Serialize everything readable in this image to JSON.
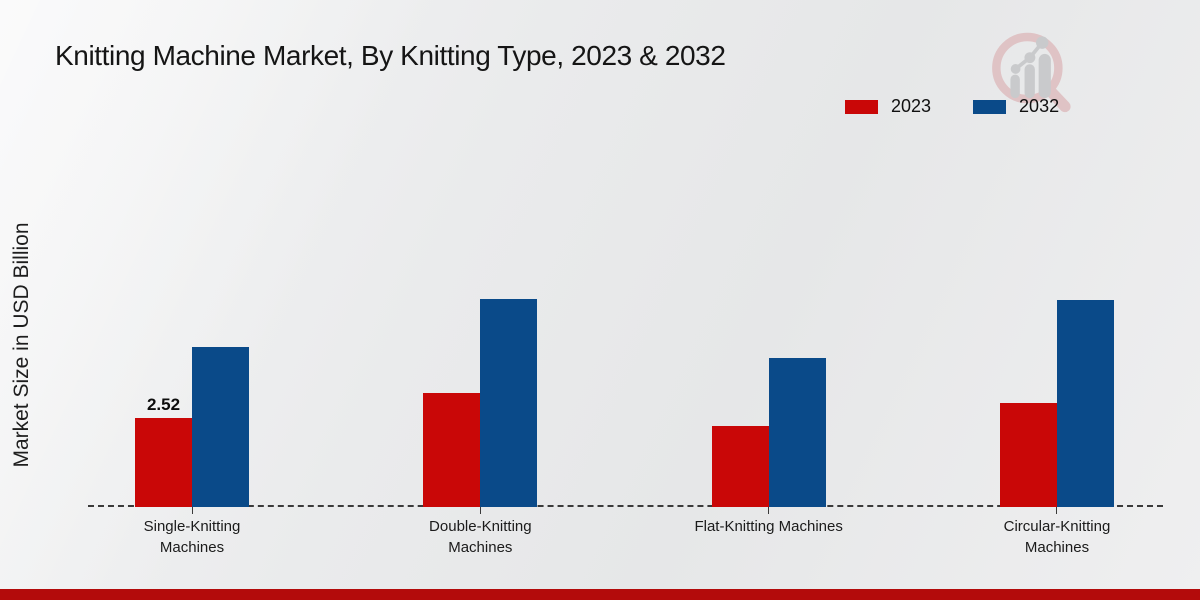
{
  "page": {
    "title": "Knitting Machine Market, By Knitting Type, 2023 & 2032"
  },
  "chart_data": {
    "type": "bar",
    "title": "Knitting Machine Market, By Knitting Type, 2023 & 2032",
    "categories": [
      "Single-Knitting Machines",
      "Double-Knitting Machines",
      "Flat-Knitting Machines",
      "Circular-Knitting Machines"
    ],
    "series": [
      {
        "name": "2023",
        "color": "#c90707",
        "values": [
          2.52,
          3.24,
          2.3,
          2.96
        ]
      },
      {
        "name": "2032",
        "color": "#0a4a89",
        "values": [
          4.55,
          5.91,
          4.24,
          5.89
        ]
      }
    ],
    "annotations": [
      {
        "series_index": 0,
        "category_index": 0,
        "text": "2.52"
      }
    ],
    "xlabel": "",
    "ylabel": "Market Size in USD Billion",
    "ylim": [
      0,
      6.5
    ],
    "grid": false,
    "legend_position": "top-right",
    "baseline_style": "dashed"
  },
  "footer": {
    "accent_color": "#b30b0b"
  }
}
